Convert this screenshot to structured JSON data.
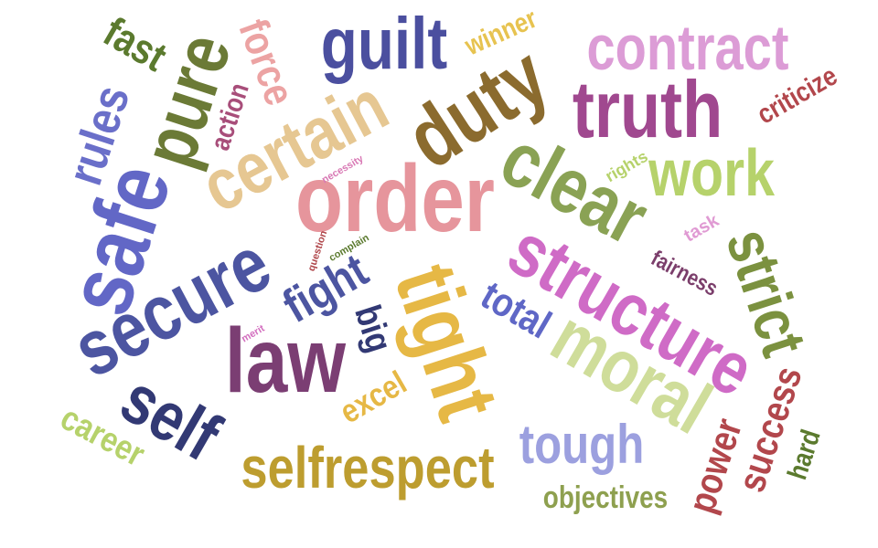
{
  "words": {
    "guilt": {
      "text": "guilt",
      "color": "#4b4f9f"
    },
    "contract": {
      "text": "contract",
      "color": "#dc9cd6"
    },
    "truth": {
      "text": "truth",
      "color": "#a0488f"
    },
    "duty": {
      "text": "duty",
      "color": "#8b6b2e"
    },
    "winner": {
      "text": "winner",
      "color": "#e7c350"
    },
    "criticize": {
      "text": "criticize",
      "color": "#b2474c"
    },
    "force": {
      "text": "force",
      "color": "#eca3a3"
    },
    "fast": {
      "text": "fast",
      "color": "#5b7a2e"
    },
    "pure": {
      "text": "pure",
      "color": "#6b7a36"
    },
    "rules": {
      "text": "rules",
      "color": "#6a6fc9"
    },
    "action": {
      "text": "action",
      "color": "#a84e7a"
    },
    "certain": {
      "text": "certain",
      "color": "#e6c792"
    },
    "safe": {
      "text": "safe",
      "color": "#6267c6"
    },
    "order": {
      "text": "order",
      "color": "#e6959c"
    },
    "necessity": {
      "text": "necessity",
      "color": "#d878b4"
    },
    "clear": {
      "text": "clear",
      "color": "#8aa254"
    },
    "work": {
      "text": "work",
      "color": "#b6d26b"
    },
    "rights": {
      "text": "rights",
      "color": "#b6d26b"
    },
    "task": {
      "text": "task",
      "color": "#e09ad3"
    },
    "fairness": {
      "text": "fairness",
      "color": "#7b3e6b"
    },
    "strict": {
      "text": "strict",
      "color": "#7b913f"
    },
    "structure": {
      "text": "structure",
      "color": "#cf6bc6"
    },
    "secure": {
      "text": "secure",
      "color": "#4c55a1"
    },
    "question": {
      "text": "question",
      "color": "#b0474b"
    },
    "complain": {
      "text": "complain",
      "color": "#5b7a2e"
    },
    "fight": {
      "text": "fight",
      "color": "#4c55a1"
    },
    "merit": {
      "text": "merit",
      "color": "#d36fbf"
    },
    "law": {
      "text": "law",
      "color": "#7b3e73"
    },
    "big": {
      "text": "big",
      "color": "#323974"
    },
    "tight": {
      "text": "tight",
      "color": "#e6b845"
    },
    "total": {
      "text": "total",
      "color": "#5f67c6"
    },
    "moral": {
      "text": "moral",
      "color": "#cfdd9a"
    },
    "self": {
      "text": "self",
      "color": "#323974"
    },
    "excel": {
      "text": "excel",
      "color": "#e6b845"
    },
    "career": {
      "text": "career",
      "color": "#b6d26b"
    },
    "selfrespect": {
      "text": "selfrespect",
      "color": "#bd9d2f"
    },
    "tough": {
      "text": "tough",
      "color": "#9ca0df"
    },
    "objectives": {
      "text": "objectives",
      "color": "#8ea04f"
    },
    "power": {
      "text": "power",
      "color": "#b2474c"
    },
    "success": {
      "text": "success",
      "color": "#b2474c"
    },
    "hard": {
      "text": "hard",
      "color": "#5b7a2e"
    }
  }
}
